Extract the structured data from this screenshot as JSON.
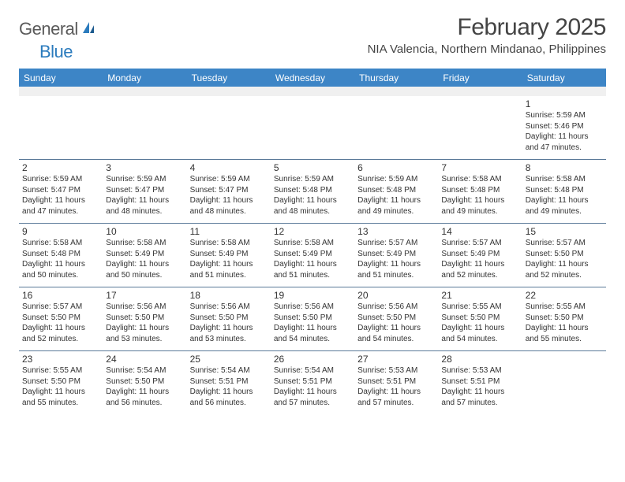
{
  "logo": {
    "text_a": "General",
    "text_b": "Blue"
  },
  "title": "February 2025",
  "location": "NIA Valencia, Northern Mindanao, Philippines",
  "colors": {
    "header_bg": "#3d85c6",
    "header_text": "#ffffff",
    "divider": "#5b7a99",
    "body_text": "#333333",
    "spacer_bg": "#f0f0f0",
    "logo_gray": "#5a5a5a",
    "logo_blue": "#2b7bbd"
  },
  "type": "calendar",
  "day_names": [
    "Sunday",
    "Monday",
    "Tuesday",
    "Wednesday",
    "Thursday",
    "Friday",
    "Saturday"
  ],
  "weeks": [
    [
      null,
      null,
      null,
      null,
      null,
      null,
      {
        "n": "1",
        "sr": "Sunrise: 5:59 AM",
        "ss": "Sunset: 5:46 PM",
        "d1": "Daylight: 11 hours",
        "d2": "and 47 minutes."
      }
    ],
    [
      {
        "n": "2",
        "sr": "Sunrise: 5:59 AM",
        "ss": "Sunset: 5:47 PM",
        "d1": "Daylight: 11 hours",
        "d2": "and 47 minutes."
      },
      {
        "n": "3",
        "sr": "Sunrise: 5:59 AM",
        "ss": "Sunset: 5:47 PM",
        "d1": "Daylight: 11 hours",
        "d2": "and 48 minutes."
      },
      {
        "n": "4",
        "sr": "Sunrise: 5:59 AM",
        "ss": "Sunset: 5:47 PM",
        "d1": "Daylight: 11 hours",
        "d2": "and 48 minutes."
      },
      {
        "n": "5",
        "sr": "Sunrise: 5:59 AM",
        "ss": "Sunset: 5:48 PM",
        "d1": "Daylight: 11 hours",
        "d2": "and 48 minutes."
      },
      {
        "n": "6",
        "sr": "Sunrise: 5:59 AM",
        "ss": "Sunset: 5:48 PM",
        "d1": "Daylight: 11 hours",
        "d2": "and 49 minutes."
      },
      {
        "n": "7",
        "sr": "Sunrise: 5:58 AM",
        "ss": "Sunset: 5:48 PM",
        "d1": "Daylight: 11 hours",
        "d2": "and 49 minutes."
      },
      {
        "n": "8",
        "sr": "Sunrise: 5:58 AM",
        "ss": "Sunset: 5:48 PM",
        "d1": "Daylight: 11 hours",
        "d2": "and 49 minutes."
      }
    ],
    [
      {
        "n": "9",
        "sr": "Sunrise: 5:58 AM",
        "ss": "Sunset: 5:48 PM",
        "d1": "Daylight: 11 hours",
        "d2": "and 50 minutes."
      },
      {
        "n": "10",
        "sr": "Sunrise: 5:58 AM",
        "ss": "Sunset: 5:49 PM",
        "d1": "Daylight: 11 hours",
        "d2": "and 50 minutes."
      },
      {
        "n": "11",
        "sr": "Sunrise: 5:58 AM",
        "ss": "Sunset: 5:49 PM",
        "d1": "Daylight: 11 hours",
        "d2": "and 51 minutes."
      },
      {
        "n": "12",
        "sr": "Sunrise: 5:58 AM",
        "ss": "Sunset: 5:49 PM",
        "d1": "Daylight: 11 hours",
        "d2": "and 51 minutes."
      },
      {
        "n": "13",
        "sr": "Sunrise: 5:57 AM",
        "ss": "Sunset: 5:49 PM",
        "d1": "Daylight: 11 hours",
        "d2": "and 51 minutes."
      },
      {
        "n": "14",
        "sr": "Sunrise: 5:57 AM",
        "ss": "Sunset: 5:49 PM",
        "d1": "Daylight: 11 hours",
        "d2": "and 52 minutes."
      },
      {
        "n": "15",
        "sr": "Sunrise: 5:57 AM",
        "ss": "Sunset: 5:50 PM",
        "d1": "Daylight: 11 hours",
        "d2": "and 52 minutes."
      }
    ],
    [
      {
        "n": "16",
        "sr": "Sunrise: 5:57 AM",
        "ss": "Sunset: 5:50 PM",
        "d1": "Daylight: 11 hours",
        "d2": "and 52 minutes."
      },
      {
        "n": "17",
        "sr": "Sunrise: 5:56 AM",
        "ss": "Sunset: 5:50 PM",
        "d1": "Daylight: 11 hours",
        "d2": "and 53 minutes."
      },
      {
        "n": "18",
        "sr": "Sunrise: 5:56 AM",
        "ss": "Sunset: 5:50 PM",
        "d1": "Daylight: 11 hours",
        "d2": "and 53 minutes."
      },
      {
        "n": "19",
        "sr": "Sunrise: 5:56 AM",
        "ss": "Sunset: 5:50 PM",
        "d1": "Daylight: 11 hours",
        "d2": "and 54 minutes."
      },
      {
        "n": "20",
        "sr": "Sunrise: 5:56 AM",
        "ss": "Sunset: 5:50 PM",
        "d1": "Daylight: 11 hours",
        "d2": "and 54 minutes."
      },
      {
        "n": "21",
        "sr": "Sunrise: 5:55 AM",
        "ss": "Sunset: 5:50 PM",
        "d1": "Daylight: 11 hours",
        "d2": "and 54 minutes."
      },
      {
        "n": "22",
        "sr": "Sunrise: 5:55 AM",
        "ss": "Sunset: 5:50 PM",
        "d1": "Daylight: 11 hours",
        "d2": "and 55 minutes."
      }
    ],
    [
      {
        "n": "23",
        "sr": "Sunrise: 5:55 AM",
        "ss": "Sunset: 5:50 PM",
        "d1": "Daylight: 11 hours",
        "d2": "and 55 minutes."
      },
      {
        "n": "24",
        "sr": "Sunrise: 5:54 AM",
        "ss": "Sunset: 5:50 PM",
        "d1": "Daylight: 11 hours",
        "d2": "and 56 minutes."
      },
      {
        "n": "25",
        "sr": "Sunrise: 5:54 AM",
        "ss": "Sunset: 5:51 PM",
        "d1": "Daylight: 11 hours",
        "d2": "and 56 minutes."
      },
      {
        "n": "26",
        "sr": "Sunrise: 5:54 AM",
        "ss": "Sunset: 5:51 PM",
        "d1": "Daylight: 11 hours",
        "d2": "and 57 minutes."
      },
      {
        "n": "27",
        "sr": "Sunrise: 5:53 AM",
        "ss": "Sunset: 5:51 PM",
        "d1": "Daylight: 11 hours",
        "d2": "and 57 minutes."
      },
      {
        "n": "28",
        "sr": "Sunrise: 5:53 AM",
        "ss": "Sunset: 5:51 PM",
        "d1": "Daylight: 11 hours",
        "d2": "and 57 minutes."
      },
      null
    ]
  ]
}
